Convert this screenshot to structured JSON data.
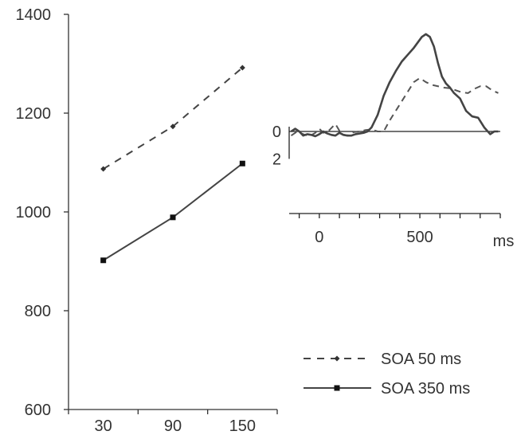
{
  "chart_data": [
    {
      "type": "line",
      "title": "",
      "xlabel": "",
      "ylabel": "",
      "categories": [
        "30",
        "90",
        "150"
      ],
      "ylim": [
        600,
        1400
      ],
      "yticks": [
        600,
        800,
        1000,
        1200,
        1400
      ],
      "grid": false,
      "legend_position": "bottom-right",
      "series": [
        {
          "name": "SOA 50 ms",
          "style": "dashed",
          "marker": "diamond",
          "color": "#444444",
          "values": [
            1087,
            1173,
            1292
          ]
        },
        {
          "name": "SOA 350 ms",
          "style": "solid",
          "marker": "square",
          "color": "#444444",
          "values": [
            902,
            989,
            1098
          ]
        }
      ]
    },
    {
      "type": "line",
      "title": "",
      "xlabel": "ms",
      "ylabel": "",
      "xlim": [
        -150,
        900
      ],
      "xticks_labeled": [
        0,
        500
      ],
      "yticks_labeled": [
        0,
        2
      ],
      "y_inverted": true,
      "series": [
        {
          "style": "dashed",
          "color": "#555555",
          "x": [
            -140,
            -110,
            -80,
            -50,
            -20,
            0,
            20,
            50,
            80,
            110,
            140,
            170,
            200,
            230,
            260,
            290,
            320,
            350,
            380,
            410,
            440,
            470,
            500,
            530,
            560,
            590,
            620,
            650,
            680,
            710,
            740,
            770,
            800,
            830,
            860,
            890
          ],
          "y": [
            0.3,
            0.0,
            0.2,
            0.35,
            0.1,
            -0.2,
            0.1,
            -0.1,
            -0.55,
            0.2,
            0.3,
            0.05,
            0.0,
            -0.1,
            -0.15,
            0.0,
            0.0,
            -0.8,
            -1.5,
            -2.2,
            -2.9,
            -3.6,
            -3.9,
            -3.6,
            -3.4,
            -3.3,
            -3.2,
            -3.15,
            -3.0,
            -2.85,
            -2.8,
            -3.1,
            -3.3,
            -3.3,
            -3.0,
            -2.8
          ]
        },
        {
          "style": "solid",
          "color": "#444444",
          "x": [
            -140,
            -120,
            -100,
            -80,
            -60,
            -40,
            -20,
            0,
            20,
            40,
            60,
            80,
            100,
            120,
            140,
            160,
            180,
            200,
            220,
            240,
            260,
            290,
            320,
            350,
            380,
            410,
            440,
            470,
            490,
            510,
            530,
            550,
            570,
            590,
            610,
            630,
            650,
            670,
            700,
            730,
            760,
            790,
            820,
            850,
            870,
            890
          ],
          "y": [
            0.0,
            -0.2,
            0.0,
            0.3,
            0.2,
            0.25,
            0.35,
            0.2,
            0.0,
            0.15,
            0.25,
            0.3,
            0.1,
            0.25,
            0.3,
            0.3,
            0.2,
            0.15,
            0.1,
            0.0,
            -0.3,
            -1.2,
            -2.6,
            -3.6,
            -4.4,
            -5.1,
            -5.6,
            -6.1,
            -6.5,
            -6.9,
            -7.1,
            -6.9,
            -6.2,
            -5.0,
            -4.0,
            -3.5,
            -3.2,
            -2.8,
            -2.4,
            -1.5,
            -1.1,
            -1.0,
            -0.3,
            0.2,
            0.0,
            0.0
          ]
        }
      ]
    }
  ]
}
